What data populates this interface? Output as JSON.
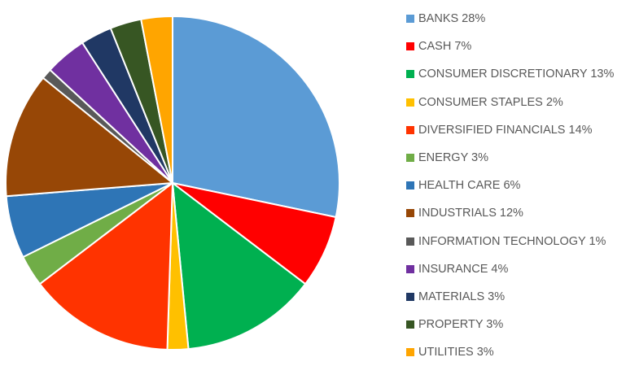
{
  "chart_data": {
    "type": "pie",
    "title": "",
    "slices": [
      {
        "label": "BANKS",
        "value": 28,
        "legend": "BANKS 28%",
        "color": "#5b9bd5"
      },
      {
        "label": "CASH",
        "value": 7,
        "legend": "CASH 7%",
        "color": "#ff0000"
      },
      {
        "label": "CONSUMER DISCRETIONARY",
        "value": 13,
        "legend": "CONSUMER DISCRETIONARY 13%",
        "color": "#00b050"
      },
      {
        "label": "CONSUMER STAPLES",
        "value": 2,
        "legend": "CONSUMER STAPLES 2%",
        "color": "#ffc000"
      },
      {
        "label": "DIVERSIFIED FINANCIALS",
        "value": 14,
        "legend": "DIVERSIFIED FINANCIALS 14%",
        "color": "#ff3300"
      },
      {
        "label": "ENERGY",
        "value": 3,
        "legend": "ENERGY 3%",
        "color": "#70ad47"
      },
      {
        "label": "HEALTH CARE",
        "value": 6,
        "legend": "HEALTH CARE 6%",
        "color": "#2e75b6"
      },
      {
        "label": "INDUSTRIALS",
        "value": 12,
        "legend": "INDUSTRIALS 12%",
        "color": "#974706"
      },
      {
        "label": "INFORMATION TECHNOLOGY",
        "value": 1,
        "legend": "INFORMATION TECHNOLOGY 1%",
        "color": "#595959"
      },
      {
        "label": "INSURANCE",
        "value": 4,
        "legend": "INSURANCE 4%",
        "color": "#7030a0"
      },
      {
        "label": "MATERIALS",
        "value": 3,
        "legend": "MATERIALS 3%",
        "color": "#203864"
      },
      {
        "label": "PROPERTY",
        "value": 3,
        "legend": "PROPERTY 3%",
        "color": "#375623"
      },
      {
        "label": "UTILITIES",
        "value": 3,
        "legend": "UTILITIES 3%",
        "color": "#ffa500"
      }
    ],
    "start": "12 o'clock",
    "direction": "clockwise",
    "legend_position": "right",
    "slice_border": "#ffffff"
  }
}
